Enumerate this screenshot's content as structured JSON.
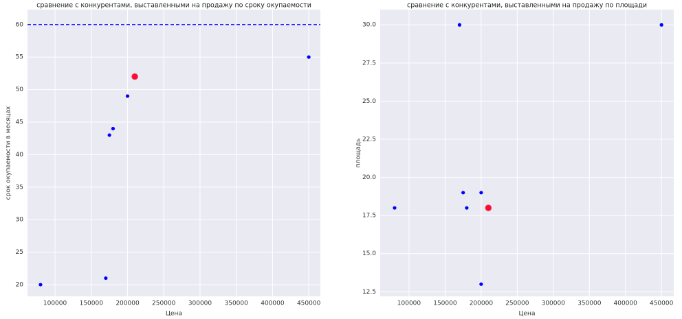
{
  "chart_data": [
    {
      "type": "scatter",
      "title": "сравнение с конкурентами, выставленными на продажу по сроку окупаемости",
      "x_label": "Цена",
      "y_label": "срок окупаемости в месяцах",
      "grid": true,
      "xlim": [
        62000,
        466000
      ],
      "xticks": [
        100000,
        150000,
        200000,
        250000,
        300000,
        350000,
        400000,
        450000
      ],
      "ylim": [
        18.2,
        62.3
      ],
      "yticks": [
        20,
        25,
        30,
        35,
        40,
        45,
        50,
        55,
        60
      ],
      "series": [
        {
          "color": "#0000ff",
          "x": [
            80000,
            170000,
            175000,
            180000,
            200000,
            450000
          ],
          "values": [
            20,
            21,
            43,
            44,
            49,
            55
          ]
        },
        {
          "color": "#ff0a2e",
          "x": [
            210000
          ],
          "values": [
            52
          ]
        }
      ],
      "hline": {
        "value": 60,
        "color": "#0000ff",
        "style": "dashed"
      }
    },
    {
      "type": "scatter",
      "title": "сравнение с конкурентами, выставленными на продажу по площади",
      "x_label": "Цена",
      "y_label": "площадь",
      "grid": true,
      "xlim": [
        60000,
        467000
      ],
      "xticks": [
        100000,
        150000,
        200000,
        250000,
        300000,
        350000,
        400000,
        450000
      ],
      "ylim": [
        12.2,
        31
      ],
      "yticks": [
        12.5,
        {
          "value": 15,
          "label": "15.0"
        },
        17.5,
        {
          "value": 20,
          "label": "20.0"
        },
        22.5,
        {
          "value": 25,
          "label": "25.0"
        },
        27.5,
        {
          "value": 30,
          "label": "30.0"
        }
      ],
      "series": [
        {
          "color": "#0000ff",
          "x": [
            80000,
            170000,
            175000,
            180000,
            200000,
            200000,
            450000
          ],
          "values": [
            18,
            30,
            19,
            18,
            19,
            13,
            30
          ]
        },
        {
          "color": "#ff0a2e",
          "x": [
            210000
          ],
          "values": [
            18
          ]
        }
      ]
    }
  ]
}
